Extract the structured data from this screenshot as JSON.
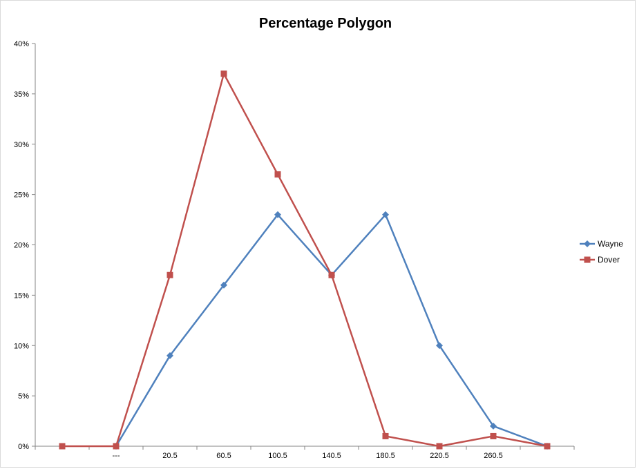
{
  "chart_data": {
    "type": "line",
    "title": "Percentage Polygon",
    "xlabel": "",
    "ylabel": "",
    "categories": [
      "",
      "---",
      "20.5",
      "60.5",
      "100.5",
      "140.5",
      "180.5",
      "220.5",
      "260.5",
      ""
    ],
    "y_ticks": [
      "0%",
      "5%",
      "10%",
      "15%",
      "20%",
      "25%",
      "30%",
      "35%",
      "40%"
    ],
    "ylim": [
      0,
      40
    ],
    "grid": false,
    "legend_position": "right",
    "series": [
      {
        "name": "Wayne",
        "color": "#4f81bd",
        "marker": "diamond",
        "x": [
          1,
          2,
          3,
          4,
          5,
          6,
          7,
          8,
          9
        ],
        "values": [
          0,
          9,
          16,
          23,
          17,
          23,
          10,
          2,
          0
        ]
      },
      {
        "name": "Dover",
        "color": "#c0504d",
        "marker": "square",
        "x": [
          0,
          1,
          2,
          3,
          4,
          5,
          6,
          7,
          8,
          9
        ],
        "values": [
          0,
          0,
          17,
          37,
          27,
          17,
          1,
          0,
          1,
          0
        ]
      }
    ]
  }
}
